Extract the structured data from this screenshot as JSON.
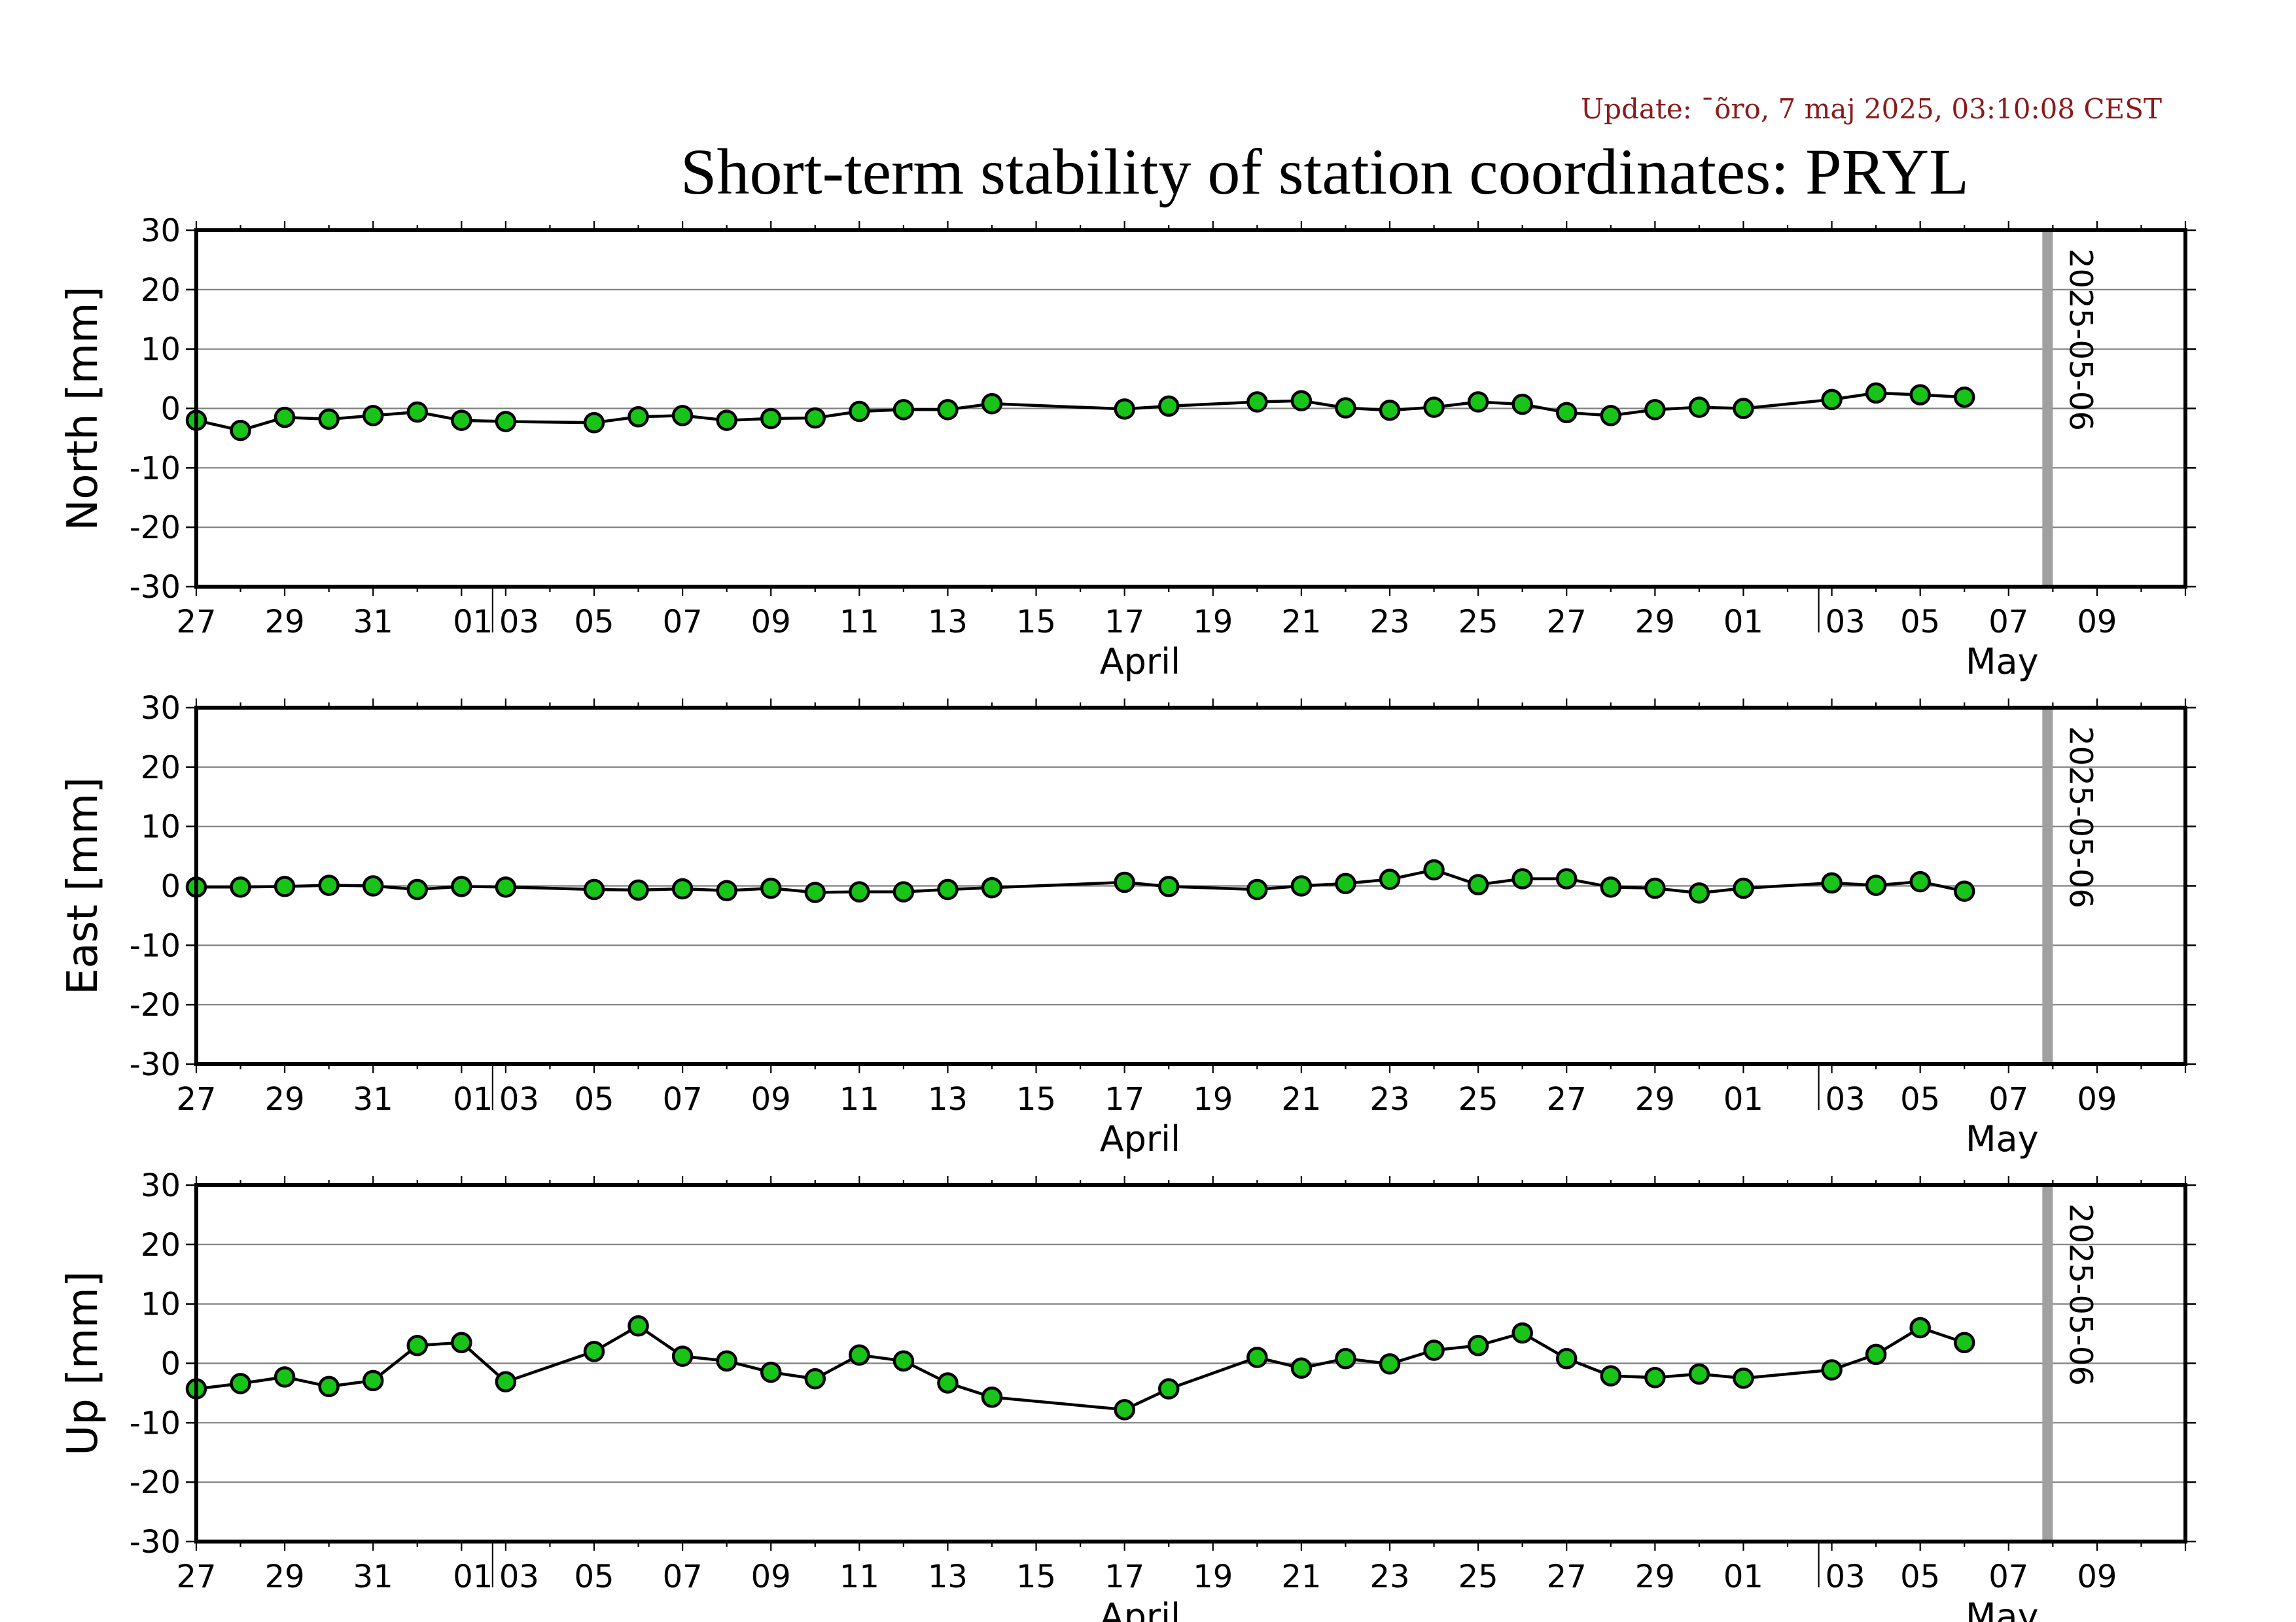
{
  "header": {
    "update": "Update: ¯õro, 7 maj 2025, 03:10:08 CEST",
    "title": "Short-term stability of station coordinates: PRYL"
  },
  "colors": {
    "point_fill": "#17c417",
    "point_stroke": "#000000",
    "line": "#000000",
    "grid": "#7f7f7f",
    "marker_line": "#a0a0a0"
  },
  "chart_data": [
    {
      "type": "line",
      "title": "",
      "ylabel": "North [mm]",
      "ylim": [
        -30,
        30
      ],
      "yticks": [
        -30,
        -20,
        -10,
        0,
        10,
        20,
        30
      ],
      "xlim": [
        "2025-03-25",
        "2025-05-09"
      ],
      "xtick_labels": [
        "27",
        "29",
        "31",
        "01",
        "03",
        "05",
        "07",
        "09",
        "11",
        "13",
        "15",
        "17",
        "19",
        "21",
        "23",
        "25",
        "27",
        "29",
        "01",
        "03",
        "05",
        "07",
        "09"
      ],
      "month_labels": [
        "April",
        "May"
      ],
      "grid": true,
      "marker_date": "2025-05-06",
      "marker_label": "2025-05-06",
      "series": [
        {
          "x": [
            "2025-03-25",
            "2025-03-26",
            "2025-03-27",
            "2025-03-28",
            "2025-03-29",
            "2025-03-30",
            "2025-03-31",
            "2025-04-01",
            "2025-04-03",
            "2025-04-04",
            "2025-04-05",
            "2025-04-06",
            "2025-04-07",
            "2025-04-08",
            "2025-04-09",
            "2025-04-10",
            "2025-04-11",
            "2025-04-12",
            "2025-04-15",
            "2025-04-16",
            "2025-04-18",
            "2025-04-19",
            "2025-04-20",
            "2025-04-21",
            "2025-04-22",
            "2025-04-23",
            "2025-04-24",
            "2025-04-25",
            "2025-04-26",
            "2025-04-27",
            "2025-04-28",
            "2025-04-29",
            "2025-05-01",
            "2025-05-02",
            "2025-05-03",
            "2025-05-04"
          ],
          "values": [
            -2,
            -3.7,
            -1.5,
            -1.8,
            -1.2,
            -0.6,
            -2,
            -2.2,
            -2.4,
            -1.4,
            -1.2,
            -2,
            -1.7,
            -1.6,
            -0.5,
            -0.2,
            -0.2,
            0.8,
            -0.1,
            0.4,
            1.1,
            1.3,
            0.1,
            -0.3,
            0.2,
            1.1,
            0.7,
            -0.7,
            -1.2,
            -0.2,
            0.2,
            0,
            1.5,
            2.6,
            2.3,
            1.9
          ]
        }
      ]
    },
    {
      "type": "line",
      "title": "",
      "ylabel": "East [mm]",
      "ylim": [
        -30,
        30
      ],
      "yticks": [
        -30,
        -20,
        -10,
        0,
        10,
        20,
        30
      ],
      "xlim": [
        "2025-03-25",
        "2025-05-09"
      ],
      "xtick_labels": [
        "27",
        "29",
        "31",
        "01",
        "03",
        "05",
        "07",
        "09",
        "11",
        "13",
        "15",
        "17",
        "19",
        "21",
        "23",
        "25",
        "27",
        "29",
        "01",
        "03",
        "05",
        "07",
        "09"
      ],
      "month_labels": [
        "April",
        "May"
      ],
      "grid": true,
      "marker_date": "2025-05-06",
      "marker_label": "2025-05-06",
      "series": [
        {
          "x": [
            "2025-03-25",
            "2025-03-26",
            "2025-03-27",
            "2025-03-28",
            "2025-03-29",
            "2025-03-30",
            "2025-03-31",
            "2025-04-01",
            "2025-04-03",
            "2025-04-04",
            "2025-04-05",
            "2025-04-06",
            "2025-04-07",
            "2025-04-08",
            "2025-04-09",
            "2025-04-10",
            "2025-04-11",
            "2025-04-12",
            "2025-04-15",
            "2025-04-16",
            "2025-04-18",
            "2025-04-19",
            "2025-04-20",
            "2025-04-21",
            "2025-04-22",
            "2025-04-23",
            "2025-04-24",
            "2025-04-25",
            "2025-04-26",
            "2025-04-27",
            "2025-04-28",
            "2025-04-29",
            "2025-05-01",
            "2025-05-02",
            "2025-05-03",
            "2025-05-04"
          ],
          "values": [
            -0.2,
            -0.2,
            -0.1,
            0.1,
            0,
            -0.6,
            -0.1,
            -0.2,
            -0.6,
            -0.7,
            -0.5,
            -0.8,
            -0.4,
            -1.1,
            -1,
            -1,
            -0.6,
            -0.3,
            0.6,
            -0.1,
            -0.6,
            0,
            0.4,
            1.1,
            2.7,
            0.2,
            1.2,
            1.2,
            -0.2,
            -0.4,
            -1.2,
            -0.4,
            0.5,
            0.1,
            0.7,
            -0.9
          ]
        }
      ]
    },
    {
      "type": "line",
      "title": "",
      "ylabel": "Up [mm]",
      "ylim": [
        -30,
        30
      ],
      "yticks": [
        -30,
        -20,
        -10,
        0,
        10,
        20,
        30
      ],
      "xlim": [
        "2025-03-25",
        "2025-05-09"
      ],
      "xtick_labels": [
        "27",
        "29",
        "31",
        "01",
        "03",
        "05",
        "07",
        "09",
        "11",
        "13",
        "15",
        "17",
        "19",
        "21",
        "23",
        "25",
        "27",
        "29",
        "01",
        "03",
        "05",
        "07",
        "09"
      ],
      "month_labels": [
        "April",
        "May"
      ],
      "grid": true,
      "marker_date": "2025-05-06",
      "marker_label": "2025-05-06",
      "series": [
        {
          "x": [
            "2025-03-25",
            "2025-03-26",
            "2025-03-27",
            "2025-03-28",
            "2025-03-29",
            "2025-03-30",
            "2025-03-31",
            "2025-04-01",
            "2025-04-03",
            "2025-04-04",
            "2025-04-05",
            "2025-04-06",
            "2025-04-07",
            "2025-04-08",
            "2025-04-09",
            "2025-04-10",
            "2025-04-11",
            "2025-04-12",
            "2025-04-15",
            "2025-04-16",
            "2025-04-18",
            "2025-04-19",
            "2025-04-20",
            "2025-04-21",
            "2025-04-22",
            "2025-04-23",
            "2025-04-24",
            "2025-04-25",
            "2025-04-26",
            "2025-04-27",
            "2025-04-28",
            "2025-04-29",
            "2025-05-01",
            "2025-05-02",
            "2025-05-03",
            "2025-05-04"
          ],
          "values": [
            -4.3,
            -3.4,
            -2.3,
            -3.9,
            -2.9,
            3,
            3.5,
            -3.1,
            2,
            6.3,
            1.2,
            0.4,
            -1.5,
            -2.6,
            1.4,
            0.4,
            -3.3,
            -5.7,
            -7.8,
            -4.3,
            1,
            -0.8,
            0.8,
            -0.1,
            2.2,
            3,
            5.1,
            0.8,
            -2.1,
            -2.4,
            -1.8,
            -2.5,
            -1.1,
            1.5,
            6,
            3.5
          ]
        }
      ]
    }
  ]
}
